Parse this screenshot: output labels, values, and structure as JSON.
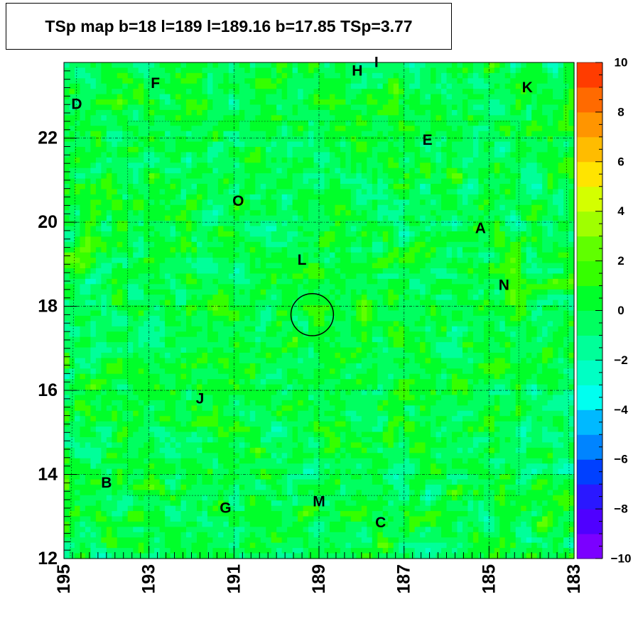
{
  "title": "TSp map b=18 l=189 l=189.16 b=17.85 TSp=3.77",
  "chart_data": {
    "type": "heatmap",
    "title": "TSp map b=18 l=189 l=189.16 b=17.85 TSp=3.77",
    "xlabel": "",
    "ylabel": "",
    "xlim": [
      195,
      183
    ],
    "ylim": [
      12,
      23.8
    ],
    "x_ticks": [
      "195",
      "193",
      "191",
      "189",
      "187",
      "185",
      "183"
    ],
    "y_ticks": [
      "12",
      "14",
      "16",
      "18",
      "20",
      "22"
    ],
    "z_range": [
      -10,
      10
    ],
    "colorbar_ticks": [
      "10",
      "8",
      "6",
      "4",
      "2",
      "0",
      "−2",
      "−4",
      "−6",
      "−8",
      "−10"
    ],
    "background_value_range": [
      -1.5,
      1.5
    ],
    "hotspot": {
      "l": 189.16,
      "b": 17.85,
      "TSp": 3.77
    },
    "marker_circle": {
      "l": 189.16,
      "b": 17.8,
      "radius_deg": 0.5
    },
    "sources": [
      {
        "label": "D",
        "l": 194.7,
        "b": 22.8
      },
      {
        "label": "F",
        "l": 192.85,
        "b": 23.3
      },
      {
        "label": "H",
        "l": 188.1,
        "b": 23.6
      },
      {
        "label": "I",
        "l": 187.65,
        "b": 23.8
      },
      {
        "label": "K",
        "l": 184.1,
        "b": 23.2
      },
      {
        "label": "E",
        "l": 186.45,
        "b": 21.95
      },
      {
        "label": "O",
        "l": 190.9,
        "b": 20.5
      },
      {
        "label": "A",
        "l": 185.2,
        "b": 19.85
      },
      {
        "label": "L",
        "l": 189.4,
        "b": 19.1
      },
      {
        "label": "N",
        "l": 184.65,
        "b": 18.5
      },
      {
        "label": "J",
        "l": 191.8,
        "b": 15.8
      },
      {
        "label": "B",
        "l": 194.0,
        "b": 13.8
      },
      {
        "label": "M",
        "l": 189.0,
        "b": 13.35
      },
      {
        "label": "G",
        "l": 191.2,
        "b": 13.2
      },
      {
        "label": "C",
        "l": 187.55,
        "b": 12.85
      }
    ]
  }
}
